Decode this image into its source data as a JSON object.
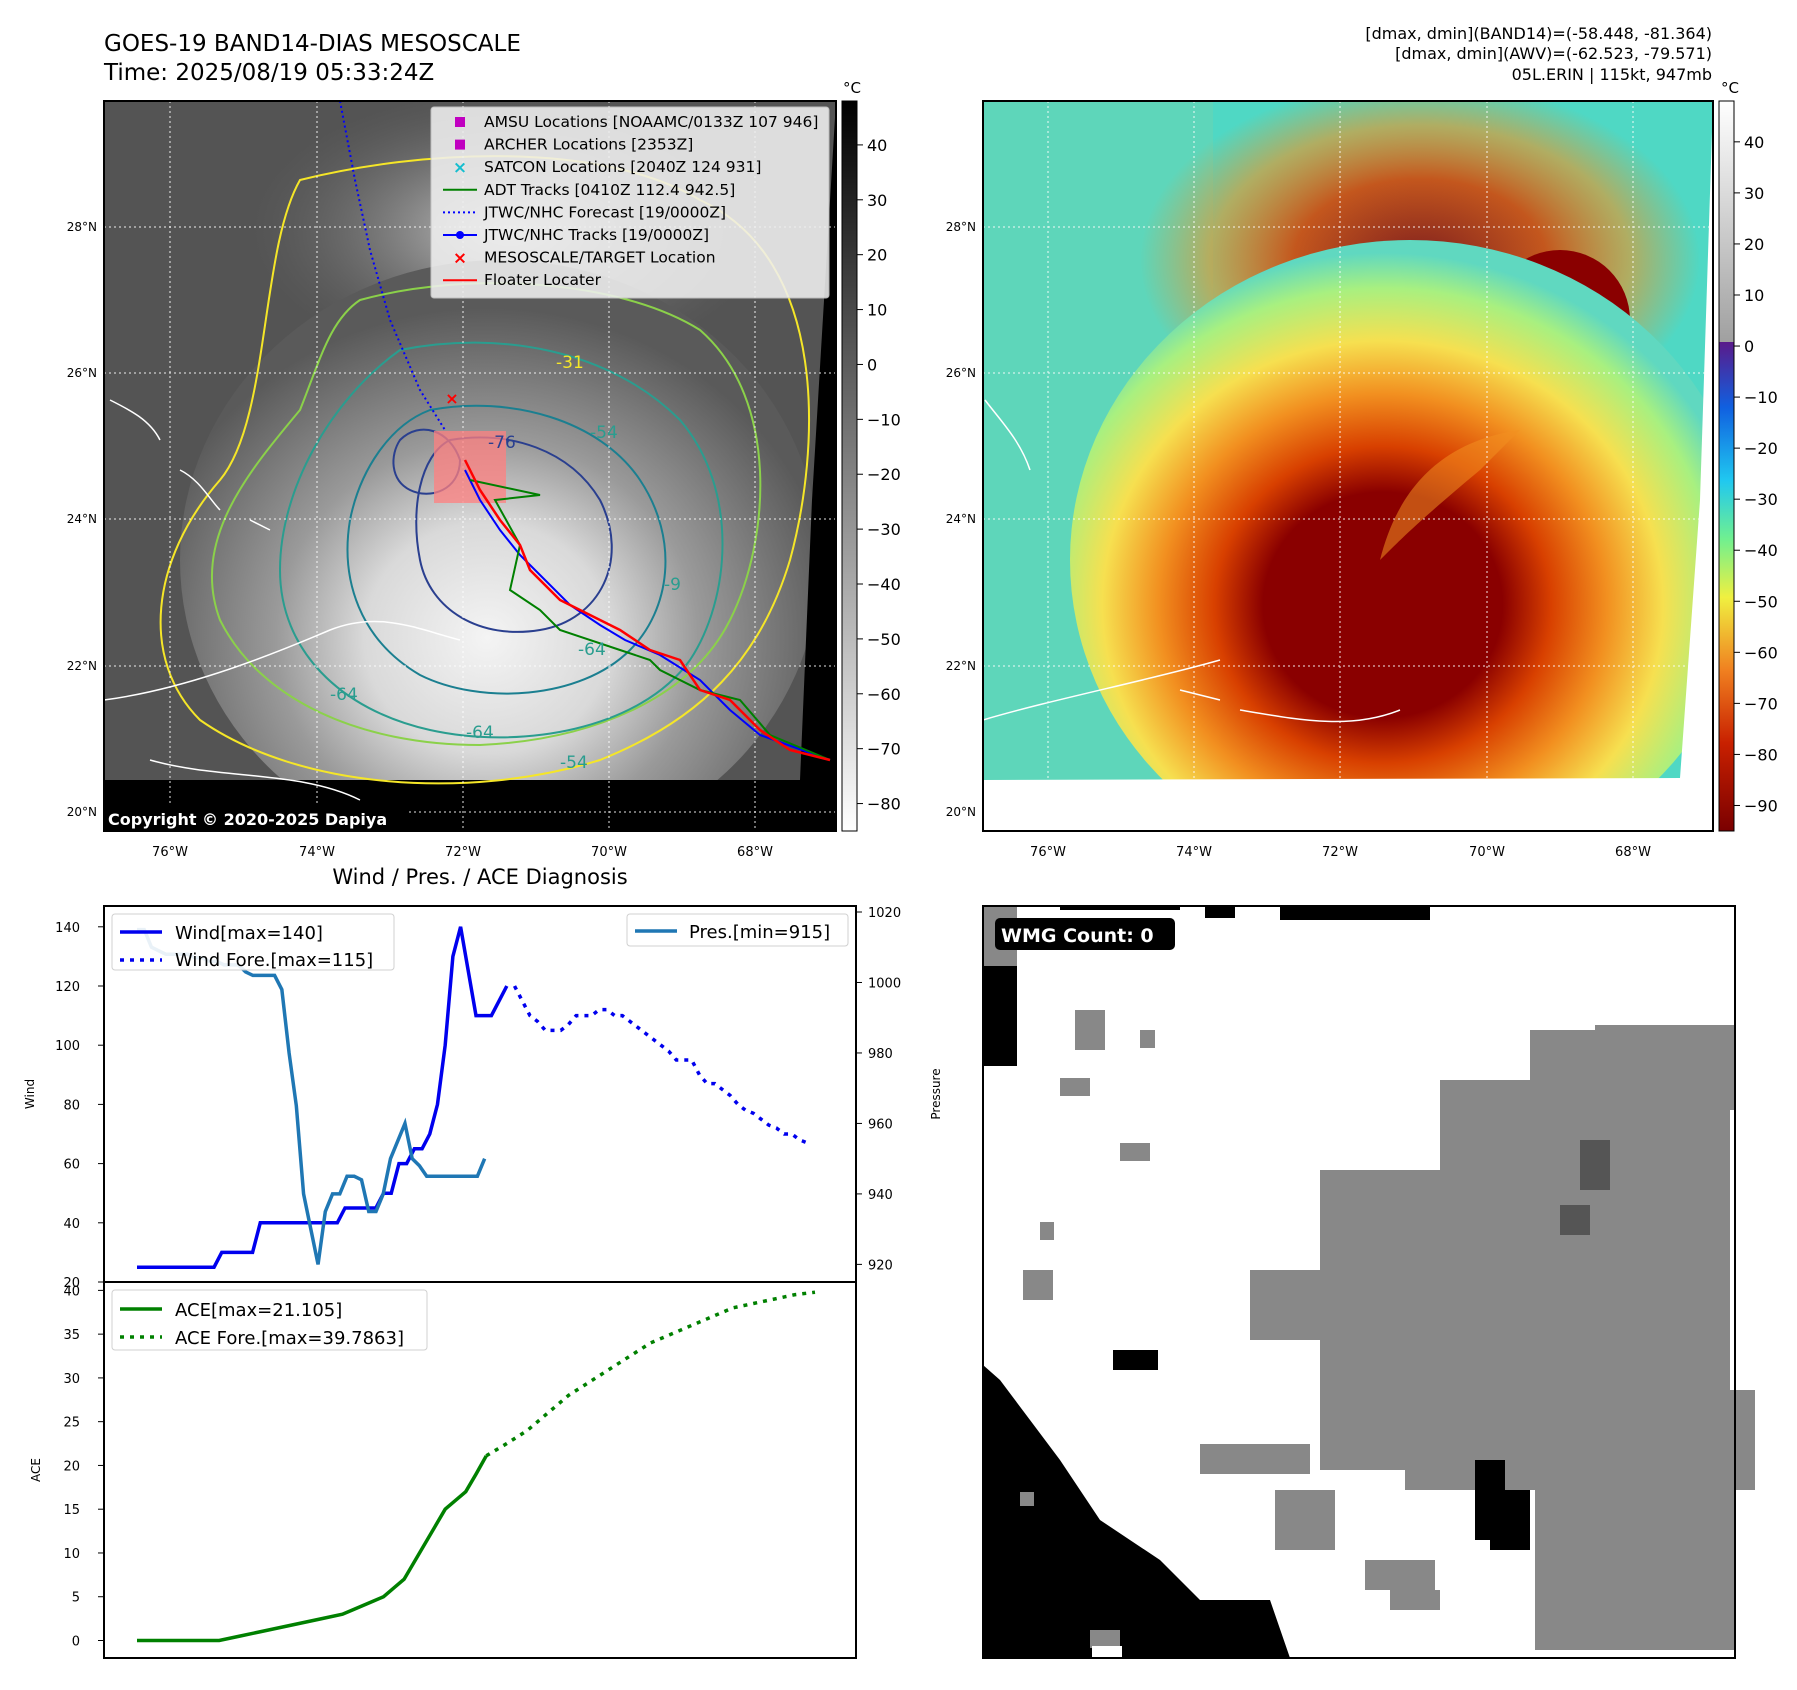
{
  "header": {
    "title_line1": "GOES-19 BAND14-DIAS MESOSCALE",
    "title_line2": "Time: 2025/08/19 05:33:24Z",
    "right_line1": "[dmax, dmin](BAND14)=(-58.448, -81.364)",
    "right_line2": "[dmax, dmin](AWV)=(-62.523, -79.571)",
    "right_line3": "05L.ERIN | 115kt, 947mb"
  },
  "map": {
    "lon_labels": [
      "76°W",
      "74°W",
      "72°W",
      "70°W",
      "68°W"
    ],
    "lat_labels": [
      "28°N",
      "26°N",
      "24°N",
      "22°N",
      "20°N"
    ],
    "copyright": "Copyright © 2020-2025 Dapiya",
    "contour_labels": [
      "-76",
      "-31",
      "-54",
      "-64",
      "-64",
      "-64",
      "-54",
      "-9"
    ],
    "legend": [
      {
        "label": "AMSU Locations [NOAAMC/0133Z 107 946]",
        "color": "#c000c0",
        "marker": "square"
      },
      {
        "label": "ARCHER Locations [2353Z]",
        "color": "#c000c0",
        "marker": "square"
      },
      {
        "label": "SATCON Locations [2040Z 124 931]",
        "color": "#17becf",
        "marker": "x"
      },
      {
        "label": "ADT Tracks [0410Z 112.4 942.5]",
        "color": "#008000",
        "marker": "line"
      },
      {
        "label": "JTWC/NHC Forecast [19/0000Z]",
        "color": "#0000ff",
        "marker": "dotted"
      },
      {
        "label": "JTWC/NHC Tracks [19/0000Z]",
        "color": "#0000ff",
        "marker": "line-dot"
      },
      {
        "label": "MESOSCALE/TARGET Location",
        "color": "#ff0000",
        "marker": "x"
      },
      {
        "label": "Floater Locater",
        "color": "#ff0000",
        "marker": "line"
      }
    ]
  },
  "colorbar_left": {
    "unit": "°C",
    "ticks": [
      "40",
      "30",
      "20",
      "10",
      "0",
      "−10",
      "−20",
      "−30",
      "−40",
      "−50",
      "−60",
      "−70",
      "−80"
    ]
  },
  "colorbar_right": {
    "unit": "°C",
    "ticks": [
      "40",
      "30",
      "20",
      "10",
      "0",
      "−10",
      "−20",
      "−30",
      "−40",
      "−50",
      "−60",
      "−70",
      "−80",
      "−90"
    ]
  },
  "wmg": {
    "badge": "WMG Count: 0"
  },
  "chart_data": [
    {
      "type": "line",
      "title": "Wind / Pres. / ACE Diagnosis",
      "ylabel": "Wind",
      "ylabel_right": "Pressure",
      "ylim": [
        20,
        145
      ],
      "ylim_right": [
        915,
        1020
      ],
      "y_ticks": [
        20,
        40,
        60,
        80,
        100,
        120,
        140
      ],
      "y_ticks_right": [
        920,
        940,
        960,
        980,
        1000,
        1020
      ],
      "legend_left": [
        "Wind[max=140]",
        "Wind Fore.[max=115]"
      ],
      "legend_right": [
        "Pres.[min=915]"
      ],
      "series": [
        {
          "name": "Wind[max=140]",
          "color": "#0000ee",
          "style": "solid",
          "x": [
            0,
            1,
            2,
            3,
            4,
            5,
            6,
            7,
            8,
            9,
            10,
            11,
            12,
            13,
            14,
            15,
            16,
            17,
            18,
            19,
            20,
            21,
            22,
            23,
            24,
            25,
            26,
            27,
            28,
            29,
            30,
            31,
            32,
            33,
            34,
            35,
            36,
            37,
            38,
            39,
            40,
            41,
            42,
            43,
            44,
            45,
            46,
            47,
            48
          ],
          "values": [
            25,
            25,
            25,
            25,
            25,
            25,
            25,
            25,
            25,
            25,
            25,
            30,
            30,
            30,
            30,
            30,
            40,
            40,
            40,
            40,
            40,
            40,
            40,
            40,
            40,
            40,
            40,
            45,
            45,
            45,
            45,
            45,
            50,
            50,
            60,
            60,
            65,
            65,
            70,
            80,
            100,
            130,
            140,
            125,
            110,
            110,
            110,
            115,
            120
          ]
        },
        {
          "name": "Wind Fore.[max=115]",
          "color": "#0000ee",
          "style": "dotted",
          "x": [
            49,
            50,
            51,
            52,
            53,
            54,
            55,
            56,
            57,
            58,
            59,
            60,
            61,
            62,
            63,
            64,
            65,
            66,
            67,
            68,
            69,
            70,
            71,
            72,
            73,
            74,
            75,
            76,
            77,
            78,
            79,
            80,
            81,
            82,
            83,
            84,
            85,
            86,
            87
          ],
          "values": [
            120,
            115,
            110,
            108,
            105,
            105,
            105,
            107,
            110,
            110,
            110,
            112,
            112,
            110,
            110,
            108,
            106,
            104,
            102,
            100,
            98,
            95,
            95,
            95,
            90,
            87,
            87,
            85,
            83,
            80,
            78,
            77,
            75,
            73,
            72,
            70,
            70,
            68,
            67
          ]
        },
        {
          "name": "Pres.[min=915]",
          "color": "#1f77b4",
          "style": "solid",
          "axis": "right",
          "x": [
            0,
            2,
            4,
            6,
            8,
            10,
            12,
            14,
            16,
            18,
            20,
            22,
            24,
            26,
            28,
            30,
            32,
            34,
            36,
            38,
            40,
            42,
            44,
            46,
            48,
            50,
            52,
            54,
            56,
            58,
            60,
            62,
            64,
            66,
            68,
            70,
            72,
            74,
            76,
            78,
            80,
            82,
            84,
            86,
            88,
            90,
            92,
            94,
            96
          ],
          "values": [
            1015,
            1015,
            1010,
            1009,
            1008,
            1008,
            1008,
            1008,
            1007,
            1007,
            1006,
            1006,
            1005,
            1005,
            1005,
            1003,
            1002,
            1002,
            1002,
            1002,
            998,
            980,
            965,
            940,
            930,
            920,
            935,
            940,
            940,
            945,
            945,
            944,
            935,
            935,
            940,
            950,
            955,
            960,
            950,
            948,
            945,
            945,
            945,
            945,
            945,
            945,
            945,
            945,
            950
          ]
        }
      ]
    },
    {
      "type": "line",
      "ylabel": "ACE",
      "ylim": [
        -2,
        40.5
      ],
      "y_ticks": [
        0,
        5,
        10,
        15,
        20,
        25,
        30,
        35,
        40
      ],
      "legend": [
        "ACE[max=21.105]",
        "ACE Fore.[max=39.7863]"
      ],
      "series": [
        {
          "name": "ACE[max=21.105]",
          "color": "#008000",
          "style": "solid",
          "x": [
            0,
            4,
            8,
            12,
            16,
            20,
            24,
            28,
            32,
            36,
            40,
            42,
            44,
            46,
            48,
            50,
            52,
            54,
            56,
            58,
            60,
            62,
            64,
            66,
            68
          ],
          "values": [
            0,
            0,
            0,
            0,
            0,
            0.5,
            1,
            1.5,
            2,
            2.5,
            3,
            3.5,
            4,
            4.5,
            5,
            6,
            7,
            9,
            11,
            13,
            15,
            16,
            17,
            19,
            21.1
          ]
        },
        {
          "name": "ACE Fore.[max=39.7863]",
          "color": "#008000",
          "style": "dotted",
          "x": [
            68,
            72,
            76,
            80,
            84,
            88,
            92,
            96,
            100,
            104,
            108,
            112,
            116,
            120,
            124,
            128,
            132
          ],
          "values": [
            21.1,
            22.5,
            24,
            26,
            28,
            29.5,
            31,
            32.5,
            34,
            35,
            36,
            37,
            38,
            38.5,
            39,
            39.5,
            39.79
          ]
        }
      ]
    }
  ]
}
